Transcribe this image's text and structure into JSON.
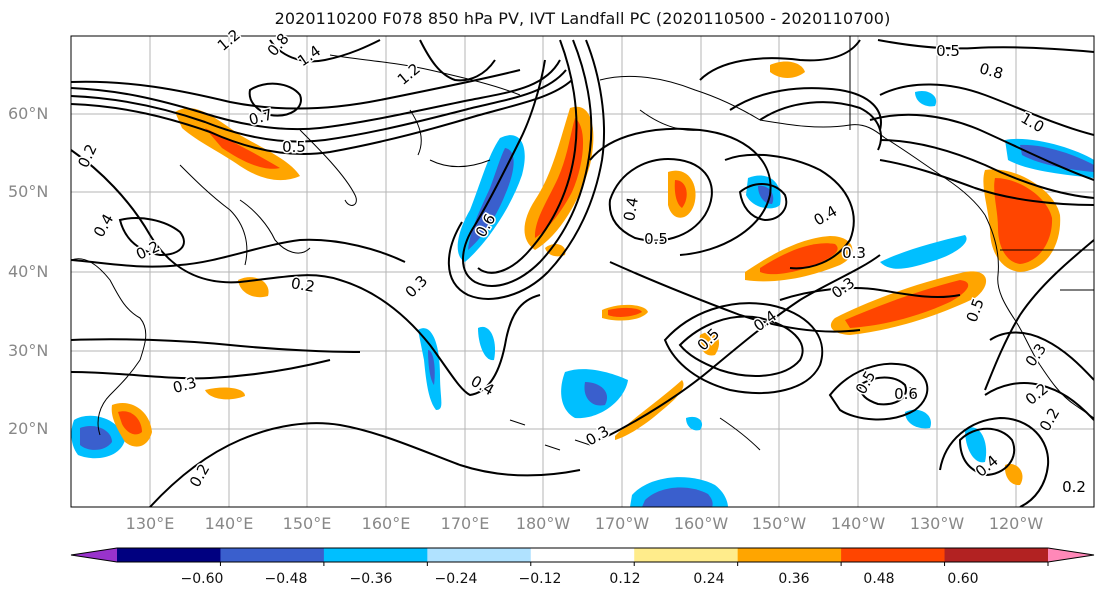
{
  "title": "2020110200 F078 850 hPa PV, IVT Landfall PC (2020110500 - 2020110700)",
  "lat_labels": [
    "60°N",
    "50°N",
    "40°N",
    "30°N",
    "20°N"
  ],
  "lon_labels": [
    "130°E",
    "140°E",
    "150°E",
    "160°E",
    "170°E",
    "180°W",
    "170°W",
    "160°W",
    "150°W",
    "140°W",
    "130°W",
    "120°W"
  ],
  "contour_labels": [
    "1.4",
    "0.8",
    "1.2",
    "1.2",
    "0.7",
    "0.5",
    "0.2",
    "0.4",
    "0.2",
    "0.2",
    "0.3",
    "0.3",
    "0.6",
    "0.4",
    "0.5",
    "0.4",
    "0.3",
    "0.3",
    "0.4",
    "0.5",
    "0.4",
    "0.3",
    "0.2",
    "0.5",
    "0.7",
    "0.6",
    "0.5",
    "0.3",
    "0.2",
    "0.2",
    "0.4",
    "1.0",
    "0.8",
    "0.5",
    "0.2"
  ],
  "colorbar": {
    "ticks": [
      "−0.60",
      "−0.48",
      "−0.36",
      "−0.24",
      "−0.12",
      "0.12",
      "0.24",
      "0.36",
      "0.48",
      "0.60"
    ],
    "colors": [
      "#9933cc",
      "#000080",
      "#3a5fcd",
      "#00bfff",
      "#b0e2ff",
      "#ffffff",
      "#ffec8b",
      "#ffa500",
      "#ff4500",
      "#b22222",
      "#ff88b8"
    ]
  }
}
